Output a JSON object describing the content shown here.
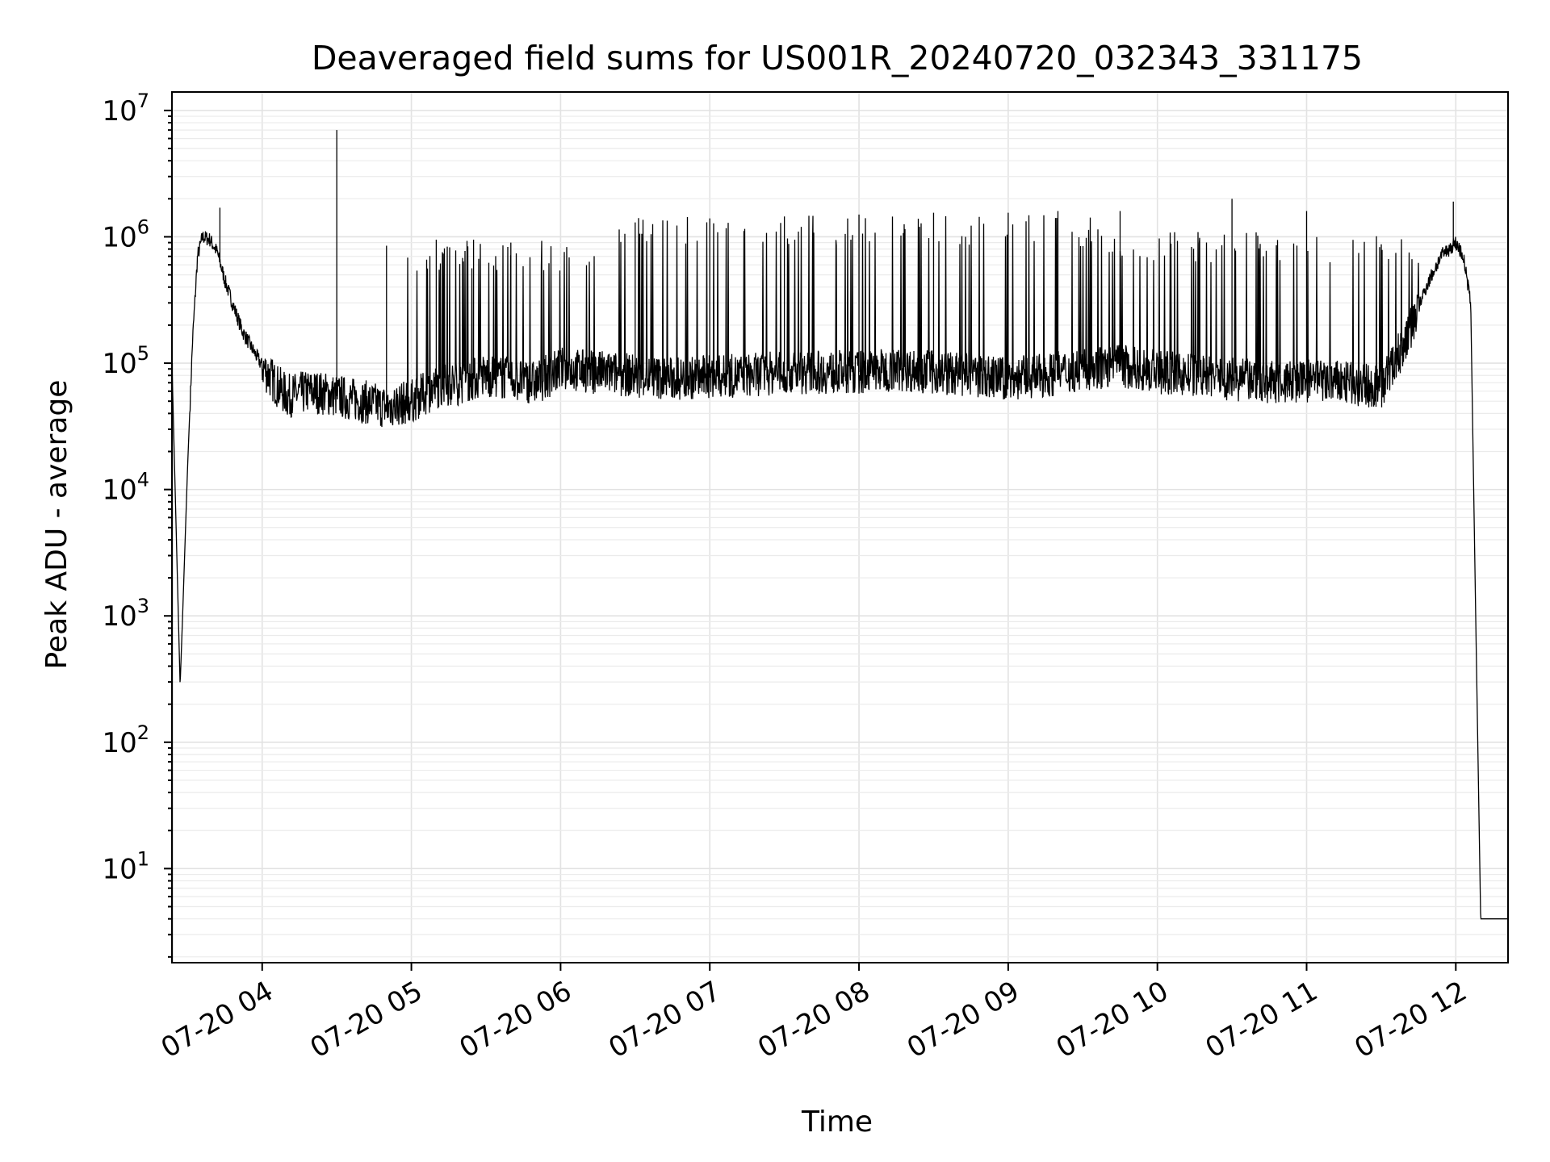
{
  "chart_data": {
    "type": "line",
    "title": "Deaveraged field sums for US001R_20240720_032343_331175",
    "xlabel": "Time",
    "ylabel": "Peak ADU - average",
    "yscale": "log",
    "ylim": [
      1.8,
      14000000
    ],
    "xlim": [
      "2024-07-20T03:23:43",
      "2024-07-20T12:21:00"
    ],
    "grid": true,
    "x_tick_labels": [
      "07-20 04",
      "07-20 05",
      "07-20 06",
      "07-20 07",
      "07-20 08",
      "07-20 09",
      "07-20 10",
      "07-20 11",
      "07-20 12"
    ],
    "x_ticks": [
      "2024-07-20T04:00:00",
      "2024-07-20T05:00:00",
      "2024-07-20T06:00:00",
      "2024-07-20T07:00:00",
      "2024-07-20T08:00:00",
      "2024-07-20T09:00:00",
      "2024-07-20T10:00:00",
      "2024-07-20T11:00:00",
      "2024-07-20T12:00:00"
    ],
    "y_ticks": [
      10,
      100,
      1000,
      10000,
      100000,
      1000000,
      10000000
    ],
    "y_tick_labels": [
      {
        "base": "10",
        "exp": "1"
      },
      {
        "base": "10",
        "exp": "2"
      },
      {
        "base": "10",
        "exp": "3"
      },
      {
        "base": "10",
        "exp": "4"
      },
      {
        "base": "10",
        "exp": "5"
      },
      {
        "base": "10",
        "exp": "6"
      },
      {
        "base": "10",
        "exp": "7"
      }
    ],
    "series": [
      {
        "color": "#000000",
        "x": [
          "2024-07-20T03:23:43",
          "2024-07-20T03:27:00",
          "2024-07-20T03:28:00",
          "2024-07-20T03:30:00",
          "2024-07-20T03:32:00",
          "2024-07-20T03:34:00",
          "2024-07-20T03:36:00",
          "2024-07-20T03:39:00",
          "2024-07-20T03:42:00",
          "2024-07-20T03:45:00",
          "2024-07-20T03:48:00",
          "2024-07-20T03:52:00",
          "2024-07-20T03:56:00",
          "2024-07-20T04:00:00",
          "2024-07-20T04:05:00",
          "2024-07-20T04:10:00",
          "2024-07-20T04:20:00",
          "2024-07-20T04:30:00",
          "2024-07-20T04:40:00",
          "2024-07-20T04:50:00",
          "2024-07-20T05:00:00",
          "2024-07-20T05:10:00",
          "2024-07-20T05:20:00",
          "2024-07-20T05:30:00",
          "2024-07-20T05:40:00",
          "2024-07-20T05:50:00",
          "2024-07-20T06:00:00",
          "2024-07-20T06:15:00",
          "2024-07-20T06:30:00",
          "2024-07-20T06:45:00",
          "2024-07-20T07:00:00",
          "2024-07-20T07:15:00",
          "2024-07-20T07:30:00",
          "2024-07-20T07:45:00",
          "2024-07-20T08:00:00",
          "2024-07-20T08:15:00",
          "2024-07-20T08:30:00",
          "2024-07-20T08:45:00",
          "2024-07-20T09:00:00",
          "2024-07-20T09:15:00",
          "2024-07-20T09:30:00",
          "2024-07-20T09:45:00",
          "2024-07-20T10:00:00",
          "2024-07-20T10:15:00",
          "2024-07-20T10:30:00",
          "2024-07-20T10:45:00",
          "2024-07-20T11:00:00",
          "2024-07-20T11:15:00",
          "2024-07-20T11:30:00",
          "2024-07-20T11:40:00",
          "2024-07-20T11:48:00",
          "2024-07-20T11:54:00",
          "2024-07-20T12:00:00",
          "2024-07-20T12:03:00",
          "2024-07-20T12:06:00",
          "2024-07-20T12:08:00",
          "2024-07-20T12:10:00",
          "2024-07-20T12:13:00",
          "2024-07-20T12:21:00"
        ],
        "y": [
          100000,
          280,
          1000,
          15000,
          150000,
          700000,
          1000000,
          950000,
          750000,
          450000,
          300000,
          180000,
          130000,
          95000,
          70000,
          55000,
          60000,
          55000,
          50000,
          45000,
          50000,
          65000,
          70000,
          80000,
          75000,
          70000,
          90000,
          85000,
          80000,
          75000,
          78000,
          80000,
          85000,
          85000,
          85000,
          90000,
          85000,
          80000,
          75000,
          80000,
          90000,
          95000,
          85000,
          80000,
          75000,
          70000,
          72000,
          70000,
          65000,
          150000,
          400000,
          700000,
          900000,
          700000,
          300000,
          1000,
          4,
          4,
          4
        ],
        "spikes": [
          {
            "x": "2024-07-20T03:43:00",
            "y": 1700000
          },
          {
            "x": "2024-07-20T04:30:00",
            "y": 7000000
          },
          {
            "x": "2024-07-20T04:50:00",
            "y": 850000
          },
          {
            "x": "2024-07-20T05:10:00",
            "y": 950000
          },
          {
            "x": "2024-07-20T05:25:00",
            "y": 950000
          },
          {
            "x": "2024-07-20T05:40:00",
            "y": 900000
          },
          {
            "x": "2024-07-20T06:30:00",
            "y": 1300000
          },
          {
            "x": "2024-07-20T07:00:00",
            "y": 1400000
          },
          {
            "x": "2024-07-20T07:30:00",
            "y": 1450000
          },
          {
            "x": "2024-07-20T08:00:00",
            "y": 1500000
          },
          {
            "x": "2024-07-20T08:30:00",
            "y": 1550000
          },
          {
            "x": "2024-07-20T09:00:00",
            "y": 1550000
          },
          {
            "x": "2024-07-20T09:20:00",
            "y": 1600000
          },
          {
            "x": "2024-07-20T09:45:00",
            "y": 1600000
          },
          {
            "x": "2024-07-20T10:30:00",
            "y": 2000000
          },
          {
            "x": "2024-07-20T11:00:00",
            "y": 1600000
          },
          {
            "x": "2024-07-20T11:59:00",
            "y": 1900000
          }
        ]
      }
    ]
  }
}
